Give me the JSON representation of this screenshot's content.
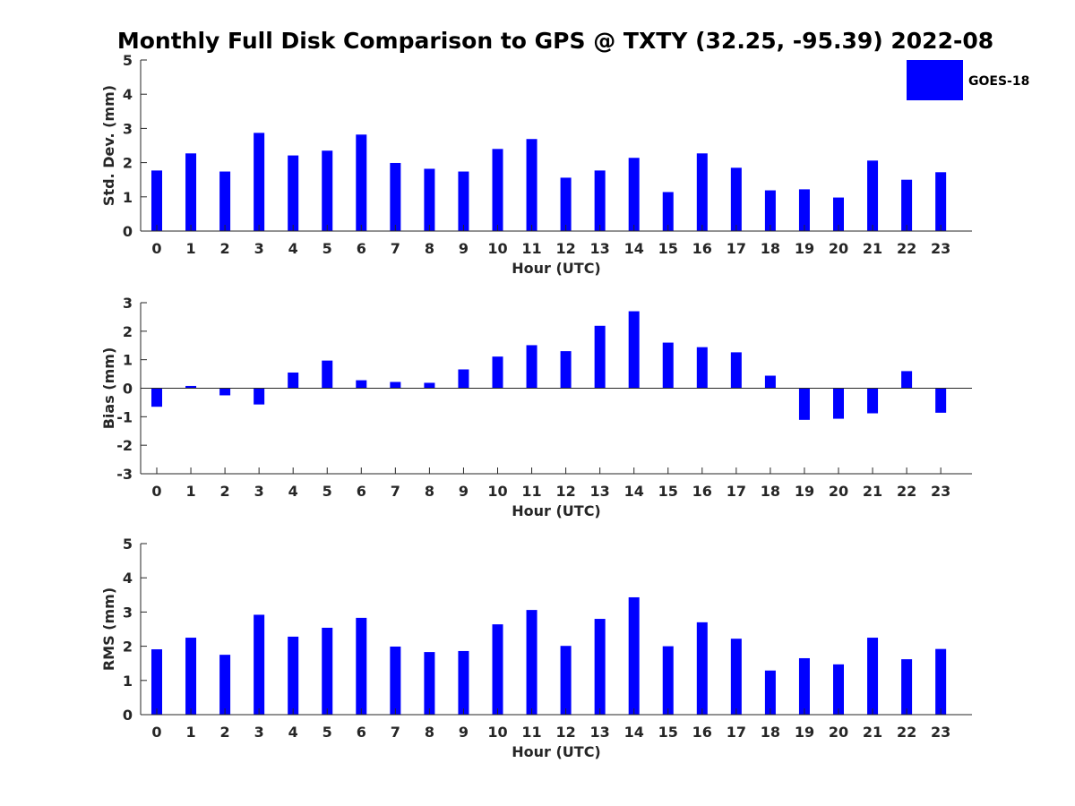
{
  "page": {
    "title": "Monthly Full Disk Comparison to GPS @ TXTY (32.25, -95.39) 2022-08"
  },
  "legend": {
    "label": "GOES-18",
    "color": "#0000ff",
    "placement": "top-right"
  },
  "chart_data": [
    {
      "type": "bar",
      "title": "Monthly Full Disk Comparison to GPS @ TXTY (32.25, -95.39) 2022-08",
      "xlabel": "Hour (UTC)",
      "ylabel": "Std. Dev. (mm)",
      "categories": [
        "0",
        "1",
        "2",
        "3",
        "4",
        "5",
        "6",
        "7",
        "8",
        "9",
        "10",
        "11",
        "12",
        "13",
        "14",
        "15",
        "16",
        "17",
        "18",
        "19",
        "20",
        "21",
        "22",
        "23"
      ],
      "ylim": [
        0,
        5
      ],
      "yticks": [
        "0",
        "1",
        "2",
        "3",
        "4",
        "5"
      ],
      "series": [
        {
          "name": "GOES-18",
          "color": "#0000ff",
          "values": [
            1.77,
            2.27,
            1.74,
            2.87,
            2.21,
            2.35,
            2.82,
            1.99,
            1.82,
            1.74,
            2.4,
            2.69,
            1.56,
            1.77,
            2.14,
            1.14,
            2.27,
            1.85,
            1.19,
            1.22,
            0.98,
            2.06,
            1.5,
            1.72
          ]
        }
      ]
    },
    {
      "type": "bar",
      "xlabel": "Hour (UTC)",
      "ylabel": "Bias (mm)",
      "categories": [
        "0",
        "1",
        "2",
        "3",
        "4",
        "5",
        "6",
        "7",
        "8",
        "9",
        "10",
        "11",
        "12",
        "13",
        "14",
        "15",
        "16",
        "17",
        "18",
        "19",
        "20",
        "21",
        "22",
        "23"
      ],
      "ylim": [
        -3,
        3
      ],
      "yticks": [
        "-3",
        "-2",
        "-1",
        "0",
        "1",
        "2",
        "3"
      ],
      "series": [
        {
          "name": "GOES-18",
          "color": "#0000ff",
          "values": [
            -0.65,
            0.08,
            -0.25,
            -0.57,
            0.55,
            0.97,
            0.28,
            0.22,
            0.19,
            0.66,
            1.11,
            1.51,
            1.3,
            2.19,
            2.7,
            1.6,
            1.44,
            1.26,
            0.44,
            -1.11,
            -1.07,
            -0.88,
            0.6,
            -0.86
          ]
        }
      ]
    },
    {
      "type": "bar",
      "xlabel": "Hour (UTC)",
      "ylabel": "RMS (mm)",
      "categories": [
        "0",
        "1",
        "2",
        "3",
        "4",
        "5",
        "6",
        "7",
        "8",
        "9",
        "10",
        "11",
        "12",
        "13",
        "14",
        "15",
        "16",
        "17",
        "18",
        "19",
        "20",
        "21",
        "22",
        "23"
      ],
      "ylim": [
        0,
        5
      ],
      "yticks": [
        "0",
        "1",
        "2",
        "3",
        "4",
        "5"
      ],
      "series": [
        {
          "name": "GOES-18",
          "color": "#0000ff",
          "values": [
            1.91,
            2.25,
            1.75,
            2.92,
            2.28,
            2.54,
            2.83,
            1.99,
            1.83,
            1.86,
            2.64,
            3.06,
            2.01,
            2.8,
            3.43,
            2.0,
            2.7,
            2.22,
            1.29,
            1.65,
            1.47,
            2.25,
            1.62,
            1.92
          ]
        }
      ]
    }
  ]
}
